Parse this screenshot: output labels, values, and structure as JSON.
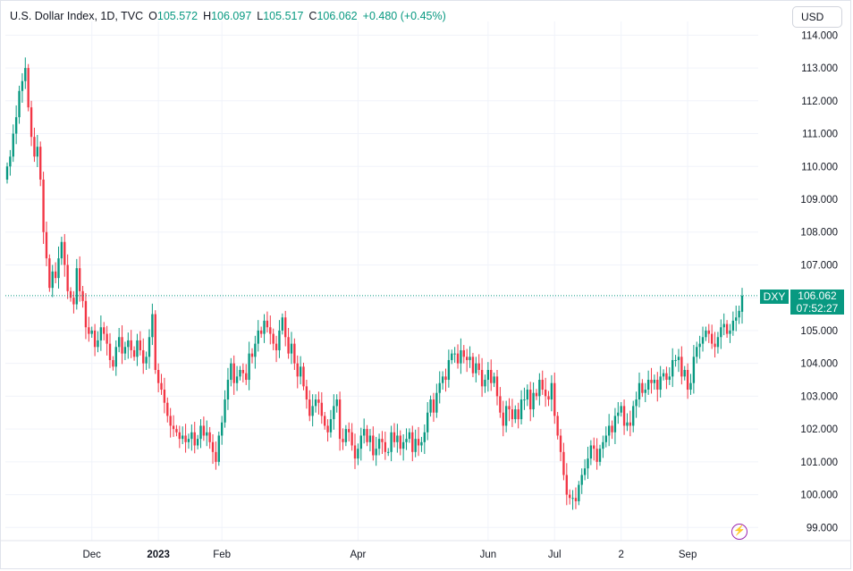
{
  "legend": {
    "title": "U.S. Dollar Index, 1D, TVC",
    "open_label": "O",
    "open": "105.572",
    "high_label": "H",
    "high": "106.097",
    "low_label": "L",
    "low": "105.517",
    "close_label": "C",
    "close": "106.062",
    "change": "+0.480 (+0.45%)"
  },
  "currency_button": "USD",
  "last_price": {
    "symbol": "DXY",
    "value": "106.062",
    "countdown": "07:52:27"
  },
  "flash_icon": "lightning-icon",
  "colors": {
    "up": "#089981",
    "down": "#F23645",
    "grid": "#f0f3fa"
  },
  "chart_data": {
    "type": "candlestick",
    "title": "U.S. Dollar Index, 1D, TVC",
    "ylim": [
      98.6,
      114.2
    ],
    "y_ticks": [
      99,
      100,
      101,
      102,
      103,
      104,
      105,
      106,
      107,
      108,
      109,
      110,
      111,
      112,
      113,
      114
    ],
    "y_tick_labels": [
      "99.000",
      "100.000",
      "101.000",
      "102.000",
      "103.000",
      "104.000",
      "105.000",
      "106.000",
      "107.000",
      "108.000",
      "109.000",
      "110.000",
      "111.000",
      "112.000",
      "113.000",
      "114.000"
    ],
    "x_labels": [
      {
        "label": "Dec",
        "bold": false,
        "index": 28
      },
      {
        "label": "2023",
        "bold": true,
        "index": 50
      },
      {
        "label": "Feb",
        "bold": false,
        "index": 71
      },
      {
        "label": "Apr",
        "bold": false,
        "index": 116
      },
      {
        "label": "Jun",
        "bold": false,
        "index": 159
      },
      {
        "label": "Jul",
        "bold": false,
        "index": 181
      },
      {
        "label": "2",
        "bold": false,
        "index": 203
      },
      {
        "label": "Sep",
        "bold": false,
        "index": 225
      }
    ],
    "last_price": 106.062,
    "closes": [
      110.0,
      110.3,
      111.0,
      111.5,
      112.3,
      112.6,
      113.0,
      111.8,
      110.9,
      110.3,
      110.6,
      109.6,
      108.0,
      107.2,
      106.3,
      106.8,
      106.6,
      107.2,
      107.7,
      107.0,
      106.2,
      106.0,
      105.8,
      106.9,
      106.2,
      105.9,
      105.1,
      104.9,
      105.0,
      104.5,
      104.7,
      105.1,
      104.9,
      104.6,
      104.1,
      103.9,
      104.5,
      104.8,
      104.3,
      104.5,
      104.7,
      104.4,
      104.2,
      104.7,
      104.4,
      104.0,
      104.2,
      104.8,
      105.5,
      103.8,
      103.4,
      103.2,
      102.8,
      102.4,
      102.1,
      102.0,
      101.9,
      101.7,
      101.8,
      101.6,
      101.7,
      101.9,
      101.5,
      101.7,
      102.1,
      101.8,
      101.9,
      101.6,
      101.3,
      101.0,
      101.8,
      102.2,
      102.9,
      103.5,
      104.0,
      103.4,
      103.6,
      103.8,
      103.7,
      103.5,
      104.3,
      104.2,
      104.6,
      105.0,
      104.9,
      105.3,
      105.1,
      104.9,
      104.6,
      104.4,
      105.0,
      105.4,
      104.8,
      104.3,
      104.6,
      104.0,
      103.6,
      103.9,
      103.3,
      102.9,
      102.4,
      102.7,
      102.9,
      102.8,
      102.4,
      102.1,
      101.9,
      102.3,
      102.7,
      102.9,
      101.7,
      101.6,
      102.0,
      101.9,
      101.5,
      101.1,
      101.4,
      101.8,
      102.0,
      101.6,
      101.8,
      101.2,
      101.4,
      101.7,
      101.6,
      101.3,
      101.3,
      101.9,
      101.6,
      101.8,
      101.4,
      101.6,
      101.7,
      101.9,
      101.3,
      101.7,
      101.5,
      101.6,
      101.9,
      102.5,
      102.9,
      102.5,
      103.1,
      103.4,
      103.6,
      103.5,
      104.1,
      104.3,
      104.3,
      104.0,
      104.4,
      104.2,
      104.1,
      104.2,
      103.7,
      104.0,
      103.8,
      103.3,
      103.5,
      103.8,
      103.4,
      103.6,
      103.0,
      102.5,
      102.1,
      102.7,
      102.6,
      102.3,
      102.6,
      102.3,
      102.9,
      102.9,
      103.2,
      102.6,
      103.1,
      103.0,
      103.5,
      103.2,
      103.0,
      102.9,
      103.4,
      102.4,
      101.8,
      101.3,
      100.6,
      100.0,
      99.9,
      99.9,
      99.8,
      100.3,
      100.6,
      100.8,
      101.1,
      101.5,
      101.4,
      101.0,
      101.4,
      101.6,
      101.8,
      102.1,
      101.9,
      102.4,
      102.5,
      102.7,
      102.1,
      102.2,
      102.1,
      102.7,
      102.9,
      103.4,
      103.1,
      103.2,
      103.5,
      103.4,
      103.5,
      103.2,
      103.6,
      103.7,
      103.5,
      103.6,
      104.1,
      104.1,
      104.2,
      103.6,
      103.8,
      103.2,
      103.4,
      104.2,
      104.5,
      104.6,
      104.8,
      105.0,
      104.9,
      104.6,
      104.5,
      104.8,
      105.1,
      105.2,
      104.9,
      105.0,
      105.3,
      105.4,
      105.6,
      106.06
    ],
    "opens": [
      109.6,
      110.0,
      110.3,
      111.0,
      111.5,
      112.3,
      112.6,
      113.0,
      111.8,
      110.9,
      110.3,
      110.6,
      109.6,
      108.0,
      107.2,
      106.3,
      106.8,
      106.6,
      107.2,
      107.7,
      107.0,
      106.2,
      106.0,
      105.8,
      106.9,
      106.2,
      105.9,
      105.1,
      104.9,
      105.0,
      104.5,
      104.7,
      105.1,
      104.9,
      104.6,
      104.1,
      103.9,
      104.5,
      104.8,
      104.3,
      104.5,
      104.7,
      104.4,
      104.2,
      104.7,
      104.4,
      104.0,
      104.2,
      104.8,
      105.5,
      103.8,
      103.4,
      103.2,
      102.8,
      102.4,
      102.1,
      102.0,
      101.9,
      101.7,
      101.8,
      101.6,
      101.7,
      101.9,
      101.5,
      101.7,
      102.1,
      101.8,
      101.9,
      101.6,
      101.3,
      101.0,
      101.8,
      102.2,
      102.9,
      103.5,
      104.0,
      103.4,
      103.6,
      103.8,
      103.7,
      103.5,
      104.3,
      104.2,
      104.6,
      105.0,
      104.9,
      105.3,
      105.1,
      104.9,
      104.6,
      104.4,
      105.0,
      105.4,
      104.8,
      104.3,
      104.6,
      104.0,
      103.6,
      103.9,
      103.3,
      102.9,
      102.4,
      102.7,
      102.9,
      102.8,
      102.4,
      102.1,
      101.9,
      102.3,
      102.7,
      102.9,
      101.7,
      101.6,
      102.0,
      101.9,
      101.5,
      101.1,
      101.4,
      101.8,
      102.0,
      101.6,
      101.8,
      101.2,
      101.4,
      101.7,
      101.6,
      101.3,
      101.3,
      101.9,
      101.6,
      101.8,
      101.4,
      101.6,
      101.7,
      101.9,
      101.3,
      101.7,
      101.5,
      101.6,
      101.9,
      102.5,
      102.9,
      102.5,
      103.1,
      103.4,
      103.6,
      103.5,
      104.1,
      104.3,
      104.3,
      104.0,
      104.4,
      104.2,
      104.1,
      104.2,
      103.7,
      104.0,
      103.8,
      103.3,
      103.5,
      103.8,
      103.4,
      103.6,
      103.0,
      102.5,
      102.1,
      102.7,
      102.6,
      102.3,
      102.6,
      102.3,
      102.9,
      102.9,
      103.2,
      102.6,
      103.1,
      103.0,
      103.5,
      103.2,
      103.0,
      102.9,
      103.4,
      102.4,
      101.8,
      101.3,
      100.6,
      100.0,
      99.9,
      99.9,
      99.8,
      100.3,
      100.6,
      100.8,
      101.1,
      101.5,
      101.4,
      101.0,
      101.4,
      101.6,
      101.8,
      102.1,
      101.9,
      102.4,
      102.5,
      102.7,
      102.1,
      102.2,
      102.1,
      102.7,
      102.9,
      103.4,
      103.1,
      103.2,
      103.5,
      103.4,
      103.5,
      103.2,
      103.6,
      103.7,
      103.5,
      103.6,
      104.1,
      104.1,
      104.2,
      103.6,
      103.8,
      103.2,
      103.4,
      104.2,
      104.5,
      104.6,
      104.8,
      105.0,
      104.9,
      104.6,
      104.5,
      104.8,
      105.1,
      105.2,
      104.9,
      105.0,
      105.3,
      105.4,
      105.572
    ]
  }
}
